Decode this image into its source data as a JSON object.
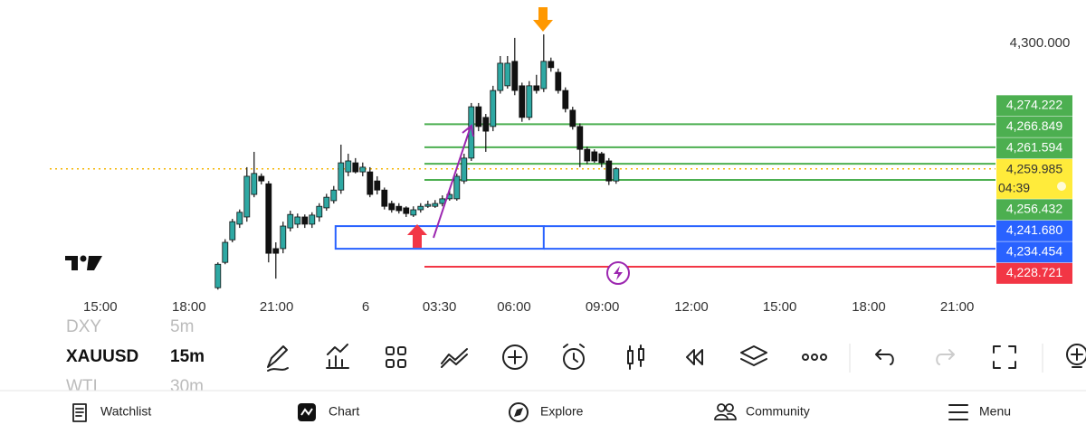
{
  "chart_data": {
    "type": "candlestick",
    "open": [
      4222.0,
      4230.1,
      4237.3,
      4242.3,
      4244.6,
      4251.8,
      4257.6,
      4255.2,
      4234.5,
      4234.5,
      4241.1,
      4242.3,
      4244.6,
      4242.3,
      4244.6,
      4247.5,
      4249.8,
      4253.2,
      4259.0,
      4261.9,
      4259.0,
      4259.0,
      4256.1,
      4253.2,
      4248.9,
      4248.0,
      4247.5,
      4245.2,
      4246.9,
      4248.0,
      4248.0,
      4248.9,
      4250.4,
      4250.4,
      4256.1,
      4263.4,
      4279.8,
      4276.4,
      4273.5,
      4285.0,
      4286.5,
      4294.3,
      4286.5,
      4276.4,
      4286.5,
      4285.6,
      4294.3,
      4290.8,
      4285.0,
      4278.7,
      4273.5,
      4266.2,
      4265.4,
      4264.8,
      4262.5,
      4256.1
    ],
    "high": [
      4230.1,
      4237.5,
      4244.0,
      4247.0,
      4260.5,
      4265.4,
      4258.5,
      4256.1,
      4236.5,
      4243.1,
      4246.6,
      4245.7,
      4245.4,
      4246.1,
      4249.0,
      4252.0,
      4254.5,
      4267.7,
      4264.8,
      4263.4,
      4262.0,
      4260.5,
      4257.6,
      4254.0,
      4249.8,
      4249.0,
      4248.0,
      4248.0,
      4249.0,
      4249.8,
      4250.0,
      4251.5,
      4253.2,
      4258.5,
      4264.8,
      4281.0,
      4281.0,
      4277.5,
      4286.5,
      4296.0,
      4296.0,
      4301.8,
      4287.5,
      4288.0,
      4290.0,
      4302.9,
      4295.5,
      4292.0,
      4286.0,
      4279.8,
      4274.5,
      4267.0,
      4266.2,
      4265.4,
      4263.4,
      4260.5
    ],
    "low": [
      4221.4,
      4229.5,
      4236.5,
      4241.1,
      4243.1,
      4250.9,
      4255.0,
      4230.1,
      4224.9,
      4233.0,
      4240.0,
      4241.1,
      4241.1,
      4241.1,
      4243.1,
      4246.6,
      4248.9,
      4252.0,
      4257.6,
      4258.5,
      4257.6,
      4250.9,
      4251.8,
      4247.0,
      4246.0,
      4245.7,
      4244.6,
      4244.6,
      4246.0,
      4247.5,
      4247.5,
      4248.0,
      4249.8,
      4249.8,
      4255.2,
      4262.5,
      4272.0,
      4265.4,
      4272.0,
      4284.0,
      4285.6,
      4283.5,
      4275.0,
      4275.5,
      4284.0,
      4284.5,
      4291.0,
      4284.0,
      4278.0,
      4272.5,
      4260.5,
      4261.5,
      4261.9,
      4260.5,
      4254.8,
      4255.2
    ],
    "close": [
      4229.5,
      4236.5,
      4243.1,
      4246.1,
      4257.6,
      4258.5,
      4256.1,
      4233.0,
      4233.0,
      4241.7,
      4245.4,
      4244.6,
      4242.3,
      4245.2,
      4248.0,
      4250.9,
      4253.2,
      4261.9,
      4262.5,
      4259.0,
      4260.5,
      4251.8,
      4253.2,
      4248.0,
      4246.9,
      4246.6,
      4245.7,
      4246.9,
      4248.0,
      4248.6,
      4248.9,
      4250.4,
      4251.8,
      4257.6,
      4263.4,
      4279.8,
      4273.5,
      4272.0,
      4285.0,
      4293.7,
      4293.7,
      4285.0,
      4276.4,
      4286.5,
      4285.0,
      4294.3,
      4292.3,
      4285.0,
      4279.2,
      4273.5,
      4266.2,
      4262.5,
      4262.5,
      4261.9,
      4256.1,
      4259.985
    ],
    "up_color": "#2ea8a3",
    "down_color": "#111111",
    "xlim": [
      -30.1,
      107.4
    ],
    "ylim": [
      4218.6,
      4313.9
    ],
    "xticks": [
      {
        "value": -16.25,
        "label": "15:00"
      },
      {
        "value": -4,
        "label": "18:00"
      },
      {
        "value": 8.1,
        "label": "21:00"
      },
      {
        "value": 20.4,
        "label": "6"
      },
      {
        "value": 30.6,
        "label": "03:30"
      },
      {
        "value": 40.9,
        "label": "06:00"
      },
      {
        "value": 53.1,
        "label": "09:00"
      },
      {
        "value": 65.4,
        "label": "12:00"
      },
      {
        "value": 77.6,
        "label": "15:00"
      },
      {
        "value": 89.9,
        "label": "18:00"
      },
      {
        "value": 102.1,
        "label": "21:00"
      }
    ],
    "yticks": [
      {
        "value": 4300,
        "label": "4,300.000"
      }
    ],
    "levels": [
      {
        "value": 4274.222,
        "label": "4,274.222",
        "color": "#4caf50"
      },
      {
        "value": 4266.849,
        "label": "4,266.849",
        "color": "#4caf50"
      },
      {
        "value": 4261.594,
        "label": "4,261.594",
        "color": "#4caf50"
      },
      {
        "value": 4256.432,
        "label": "4,256.432",
        "color": "#4caf50"
      },
      {
        "value": 4228.721,
        "label": "4,228.721",
        "color": "#f23645"
      }
    ],
    "zone": {
      "from": 16.25,
      "to": 45,
      "color": "#2962ff",
      "high": {
        "value": 4241.68,
        "label": "4,241.680"
      },
      "low": {
        "value": 4234.454,
        "label": "4,234.454"
      }
    },
    "last_label": "4,259.985",
    "countdown": "04:39",
    "last_color": "#ffeb3b"
  },
  "symbols": [
    {
      "name": "DXY",
      "interval": "5m"
    },
    {
      "name": "XAUUSD",
      "interval": "15m"
    },
    {
      "name": "WTI",
      "interval": "30m"
    }
  ],
  "nav": [
    "Watchlist",
    "Chart",
    "Explore",
    "Community",
    "Menu"
  ]
}
